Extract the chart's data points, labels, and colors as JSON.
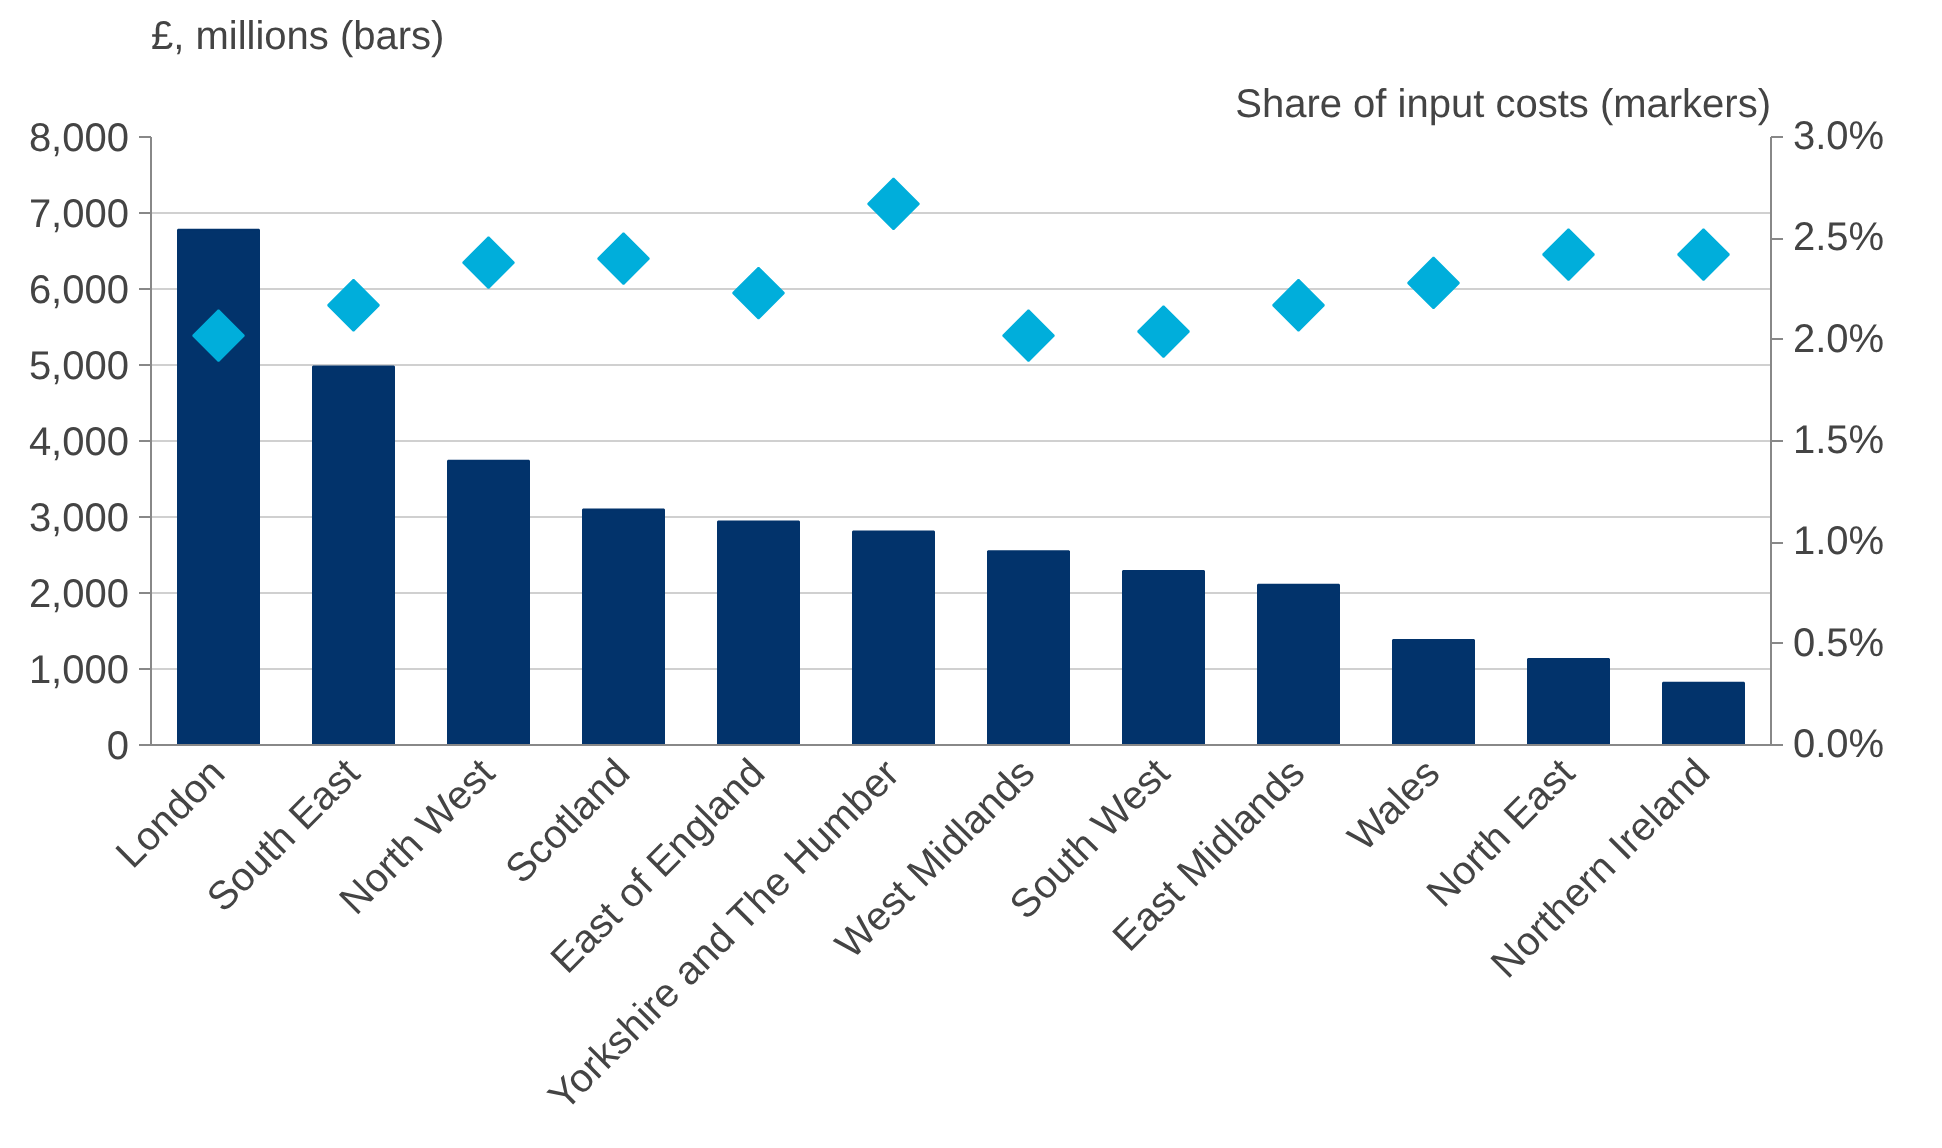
{
  "chart_data": {
    "type": "bar",
    "ylabel": "£, millions (bars)",
    "y2label": "Share of input costs (markers)",
    "categories": [
      "London",
      "South East",
      "North West",
      "Scotland",
      "East of England",
      "Yorkshire and The Humber",
      "West Midlands",
      "South West",
      "East Midlands",
      "Wales",
      "North East",
      "Northern Ireland"
    ],
    "series": [
      {
        "color": "#02336b",
        "values": [
          6780,
          4980,
          3740,
          3100,
          2940,
          2810,
          2550,
          2290,
          2110,
          1380,
          1130,
          820
        ]
      },
      {
        "type": "scatter",
        "axis": "y2",
        "marker": "diamond",
        "color": "#00aedb",
        "values": [
          2.02,
          2.17,
          2.38,
          2.4,
          2.23,
          2.67,
          2.02,
          2.04,
          2.17,
          2.28,
          2.42,
          2.42
        ]
      }
    ],
    "ylim": [
      0,
      8000
    ],
    "yticks": [
      {
        "value": 0,
        "label": "0"
      },
      {
        "value": 1000,
        "label": "1,000"
      },
      {
        "value": 2000,
        "label": "2,000"
      },
      {
        "value": 3000,
        "label": "3,000"
      },
      {
        "value": 4000,
        "label": "4,000"
      },
      {
        "value": 5000,
        "label": "5,000"
      },
      {
        "value": 6000,
        "label": "6,000"
      },
      {
        "value": 7000,
        "label": "7,000"
      },
      {
        "value": 8000,
        "label": "8,000"
      }
    ],
    "y2lim": [
      0,
      3
    ],
    "y2ticks": [
      {
        "value": 0,
        "label": "0.0%"
      },
      {
        "value": 0.5,
        "label": "0.5%"
      },
      {
        "value": 1,
        "label": "1.0%"
      },
      {
        "value": 1.5,
        "label": "1.5%"
      },
      {
        "value": 2,
        "label": "2.0%"
      },
      {
        "value": 2.5,
        "label": "2.5%"
      },
      {
        "value": 3,
        "label": "3.0%"
      }
    ],
    "grid": "y"
  }
}
